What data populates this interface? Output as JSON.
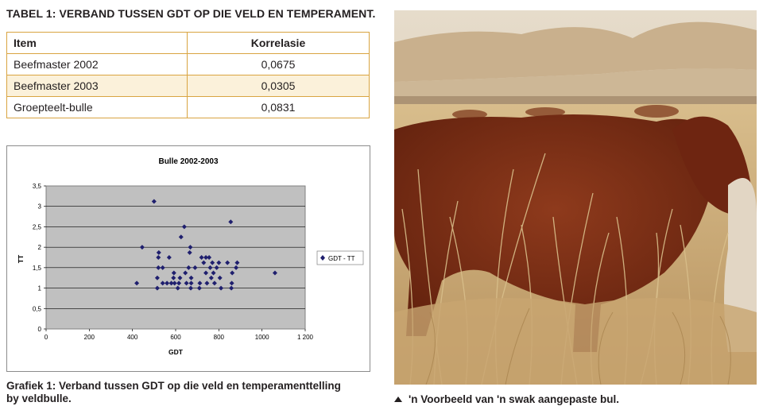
{
  "table": {
    "title": "TABEL 1: VERBAND TUSSEN GDT OP DIE VELD EN TEMPERAMENT.",
    "headers": [
      "Item",
      "Korrelasie"
    ],
    "rows": [
      {
        "item": "Beefmaster 2002",
        "value": "0,0675"
      },
      {
        "item": "Beefmaster 2003",
        "value": "0,0305"
      },
      {
        "item": "Groepteelt-bulle",
        "value": "0,0831"
      }
    ]
  },
  "chart_data": {
    "type": "scatter",
    "title": "Bulle 2002-2003",
    "xlabel": "GDT",
    "ylabel": "TT",
    "xlim": [
      0,
      1200
    ],
    "ylim": [
      0,
      3.5
    ],
    "xticks": [
      "0",
      "200",
      "400",
      "600",
      "800",
      "1000",
      "1 200"
    ],
    "yticks": [
      "0",
      "0,5",
      "1",
      "1,5",
      "2",
      "2,5",
      "3",
      "3,5"
    ],
    "grid": true,
    "legend_position": "right",
    "series": [
      {
        "name": "GDT - TT",
        "color": "#1f1f6e",
        "points": [
          [
            420,
            1.12
          ],
          [
            445,
            2.0
          ],
          [
            500,
            3.12
          ],
          [
            515,
            1.0
          ],
          [
            515,
            1.25
          ],
          [
            520,
            1.5
          ],
          [
            520,
            1.75
          ],
          [
            522,
            1.87
          ],
          [
            540,
            1.12
          ],
          [
            540,
            1.5
          ],
          [
            560,
            1.12
          ],
          [
            570,
            1.75
          ],
          [
            580,
            1.12
          ],
          [
            590,
            1.25
          ],
          [
            592,
            1.37
          ],
          [
            595,
            1.12
          ],
          [
            610,
            1.0
          ],
          [
            615,
            1.12
          ],
          [
            620,
            1.25
          ],
          [
            625,
            2.25
          ],
          [
            640,
            2.5
          ],
          [
            645,
            1.37
          ],
          [
            650,
            1.12
          ],
          [
            660,
            1.5
          ],
          [
            665,
            1.87
          ],
          [
            668,
            2.0
          ],
          [
            670,
            1.0
          ],
          [
            672,
            1.12
          ],
          [
            672,
            1.25
          ],
          [
            690,
            1.5
          ],
          [
            710,
            1.0
          ],
          [
            712,
            1.12
          ],
          [
            720,
            1.75
          ],
          [
            730,
            1.62
          ],
          [
            740,
            1.75
          ],
          [
            740,
            1.37
          ],
          [
            745,
            1.12
          ],
          [
            755,
            1.75
          ],
          [
            760,
            1.5
          ],
          [
            765,
            1.25
          ],
          [
            770,
            1.62
          ],
          [
            775,
            1.37
          ],
          [
            780,
            1.12
          ],
          [
            790,
            1.5
          ],
          [
            800,
            1.62
          ],
          [
            805,
            1.25
          ],
          [
            810,
            1.0
          ],
          [
            840,
            1.62
          ],
          [
            855,
            2.62
          ],
          [
            858,
            1.0
          ],
          [
            860,
            1.12
          ],
          [
            862,
            1.37
          ],
          [
            880,
            1.5
          ],
          [
            885,
            1.62
          ],
          [
            1060,
            1.37
          ]
        ]
      }
    ]
  },
  "captions": {
    "chart": "Grafiek 1: Verband tussen GDT op die veld en temperamenttelling by veldbulle.",
    "photo": "'n Voorbeeld van 'n swak aangepaste bul."
  },
  "photo": {
    "subject": "red-bull-in-dry-grass",
    "colors": {
      "sky": "#d9c6ab",
      "bull": "#7a2a14",
      "grass": "#cfae7c"
    }
  }
}
